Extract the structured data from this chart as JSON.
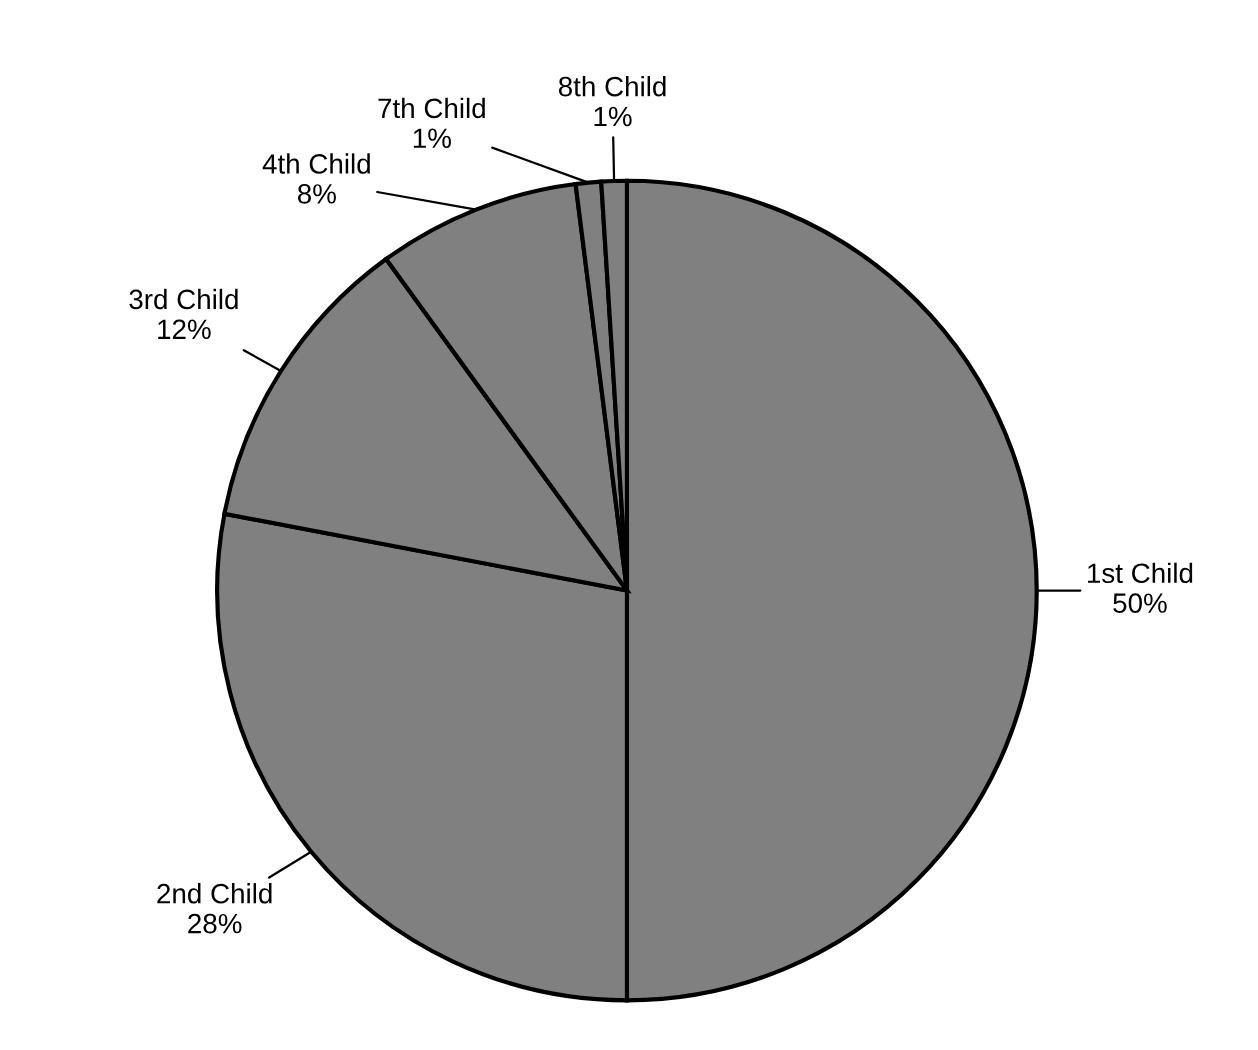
{
  "chart_data": {
    "type": "pie",
    "categories": [
      "1st Child",
      "2nd Child",
      "3rd Child",
      "4th Child",
      "7th Child",
      "8th Child"
    ],
    "values": [
      50,
      28,
      12,
      8,
      1,
      1
    ],
    "value_labels": [
      "50%",
      "28%",
      "12%",
      "8%",
      "1%",
      "1%"
    ],
    "colors": [
      "#808080",
      "#808080",
      "#808080",
      "#808080",
      "#808080",
      "#808080"
    ],
    "legend": false
  }
}
